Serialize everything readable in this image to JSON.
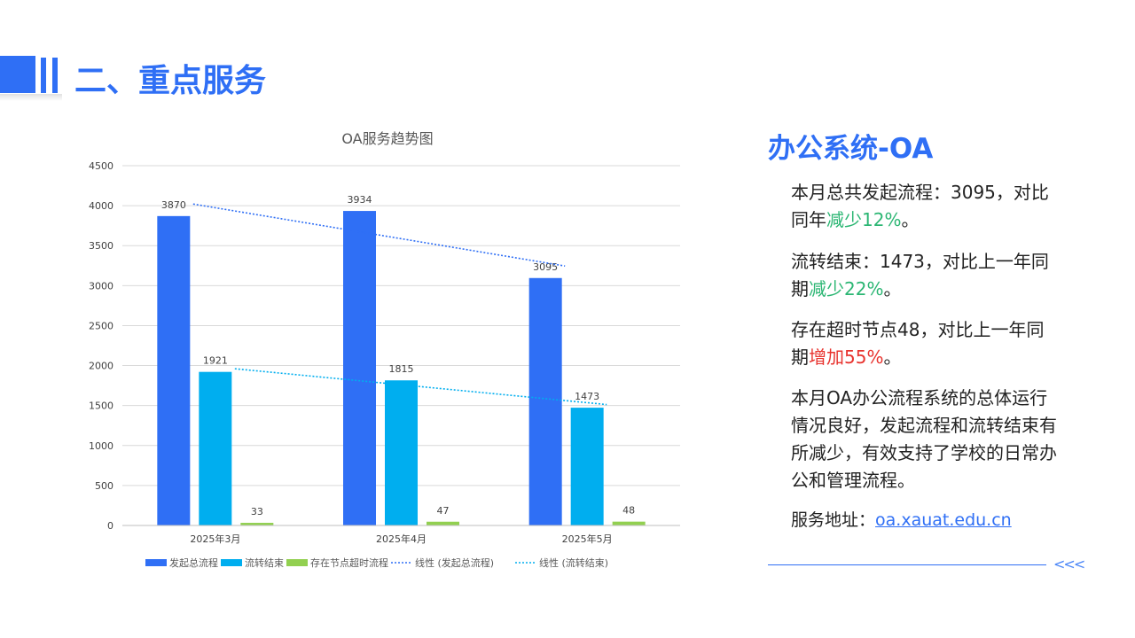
{
  "header": {
    "title": "二、重点服务"
  },
  "chart_data": {
    "type": "bar",
    "title": "OA服务趋势图",
    "categories": [
      "2025年3月",
      "2025年4月",
      "2025年5月"
    ],
    "series": [
      {
        "name": "发起总流程",
        "values": [
          3870,
          3934,
          3095
        ],
        "color": "#2f6ff5"
      },
      {
        "name": "流转结束",
        "values": [
          1921,
          1815,
          1473
        ],
        "color": "#00aeef"
      },
      {
        "name": "存在节点超时流程",
        "values": [
          33,
          47,
          48
        ],
        "color": "#92d050"
      }
    ],
    "trendlines": [
      {
        "name": "线性 (发起总流程)",
        "series": "发起总流程",
        "color": "#2f6ff5"
      },
      {
        "name": "线性 (流转结束)",
        "series": "流转结束",
        "color": "#00aeef"
      }
    ],
    "ylim": [
      0,
      4500
    ],
    "yticks": [
      0,
      500,
      1000,
      1500,
      2000,
      2500,
      3000,
      3500,
      4000,
      4500
    ],
    "legend": "bottom",
    "grid": true
  },
  "side": {
    "title": "办公系统-OA",
    "p1": {
      "text": "本月总共发起流程：3095，对比同年",
      "hl": "减少12%",
      "tail": "。"
    },
    "p2": {
      "text": "流转结束：1473，对比上一年同期",
      "hl": "减少22%",
      "tail": "。"
    },
    "p3": {
      "text": "存在超时节点48，对比上一年同期",
      "hl": "增加55%",
      "tail": "。"
    },
    "p4": "本月OA办公流程系统的总体运行情况良好，发起流程和流转结束有所减少，有效支持了学校的日常办公和管理流程。",
    "address_label": "服务地址：",
    "address_link": "oa.xauat.edu.cn",
    "chevrons": "<<<"
  }
}
